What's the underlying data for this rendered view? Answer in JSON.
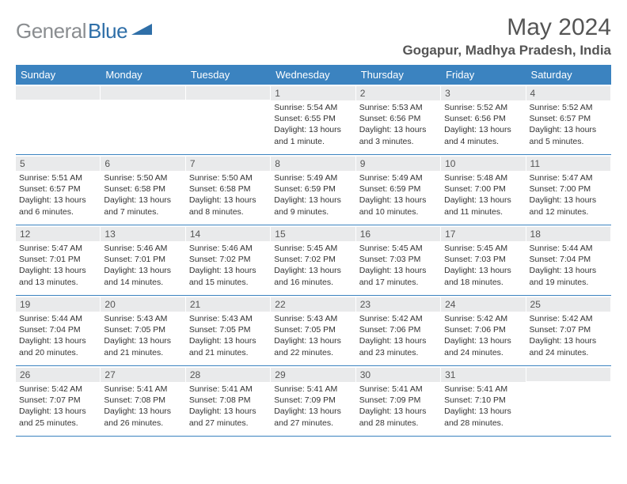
{
  "logo": {
    "text_gray": "General",
    "text_blue": "Blue"
  },
  "title": "May 2024",
  "location": "Gogapur, Madhya Pradesh, India",
  "colors": {
    "header_bg": "#3b83c0",
    "header_text": "#ffffff",
    "band_bg": "#e9eaeb",
    "logo_gray": "#8a8d90",
    "logo_blue": "#2f6fa8",
    "border": "#3b83c0",
    "text": "#333333"
  },
  "weekdays": [
    "Sunday",
    "Monday",
    "Tuesday",
    "Wednesday",
    "Thursday",
    "Friday",
    "Saturday"
  ],
  "weeks": [
    [
      {
        "n": "",
        "sr": "",
        "ss": "",
        "dl": ""
      },
      {
        "n": "",
        "sr": "",
        "ss": "",
        "dl": ""
      },
      {
        "n": "",
        "sr": "",
        "ss": "",
        "dl": ""
      },
      {
        "n": "1",
        "sr": "Sunrise: 5:54 AM",
        "ss": "Sunset: 6:55 PM",
        "dl": "Daylight: 13 hours and 1 minute."
      },
      {
        "n": "2",
        "sr": "Sunrise: 5:53 AM",
        "ss": "Sunset: 6:56 PM",
        "dl": "Daylight: 13 hours and 3 minutes."
      },
      {
        "n": "3",
        "sr": "Sunrise: 5:52 AM",
        "ss": "Sunset: 6:56 PM",
        "dl": "Daylight: 13 hours and 4 minutes."
      },
      {
        "n": "4",
        "sr": "Sunrise: 5:52 AM",
        "ss": "Sunset: 6:57 PM",
        "dl": "Daylight: 13 hours and 5 minutes."
      }
    ],
    [
      {
        "n": "5",
        "sr": "Sunrise: 5:51 AM",
        "ss": "Sunset: 6:57 PM",
        "dl": "Daylight: 13 hours and 6 minutes."
      },
      {
        "n": "6",
        "sr": "Sunrise: 5:50 AM",
        "ss": "Sunset: 6:58 PM",
        "dl": "Daylight: 13 hours and 7 minutes."
      },
      {
        "n": "7",
        "sr": "Sunrise: 5:50 AM",
        "ss": "Sunset: 6:58 PM",
        "dl": "Daylight: 13 hours and 8 minutes."
      },
      {
        "n": "8",
        "sr": "Sunrise: 5:49 AM",
        "ss": "Sunset: 6:59 PM",
        "dl": "Daylight: 13 hours and 9 minutes."
      },
      {
        "n": "9",
        "sr": "Sunrise: 5:49 AM",
        "ss": "Sunset: 6:59 PM",
        "dl": "Daylight: 13 hours and 10 minutes."
      },
      {
        "n": "10",
        "sr": "Sunrise: 5:48 AM",
        "ss": "Sunset: 7:00 PM",
        "dl": "Daylight: 13 hours and 11 minutes."
      },
      {
        "n": "11",
        "sr": "Sunrise: 5:47 AM",
        "ss": "Sunset: 7:00 PM",
        "dl": "Daylight: 13 hours and 12 minutes."
      }
    ],
    [
      {
        "n": "12",
        "sr": "Sunrise: 5:47 AM",
        "ss": "Sunset: 7:01 PM",
        "dl": "Daylight: 13 hours and 13 minutes."
      },
      {
        "n": "13",
        "sr": "Sunrise: 5:46 AM",
        "ss": "Sunset: 7:01 PM",
        "dl": "Daylight: 13 hours and 14 minutes."
      },
      {
        "n": "14",
        "sr": "Sunrise: 5:46 AM",
        "ss": "Sunset: 7:02 PM",
        "dl": "Daylight: 13 hours and 15 minutes."
      },
      {
        "n": "15",
        "sr": "Sunrise: 5:45 AM",
        "ss": "Sunset: 7:02 PM",
        "dl": "Daylight: 13 hours and 16 minutes."
      },
      {
        "n": "16",
        "sr": "Sunrise: 5:45 AM",
        "ss": "Sunset: 7:03 PM",
        "dl": "Daylight: 13 hours and 17 minutes."
      },
      {
        "n": "17",
        "sr": "Sunrise: 5:45 AM",
        "ss": "Sunset: 7:03 PM",
        "dl": "Daylight: 13 hours and 18 minutes."
      },
      {
        "n": "18",
        "sr": "Sunrise: 5:44 AM",
        "ss": "Sunset: 7:04 PM",
        "dl": "Daylight: 13 hours and 19 minutes."
      }
    ],
    [
      {
        "n": "19",
        "sr": "Sunrise: 5:44 AM",
        "ss": "Sunset: 7:04 PM",
        "dl": "Daylight: 13 hours and 20 minutes."
      },
      {
        "n": "20",
        "sr": "Sunrise: 5:43 AM",
        "ss": "Sunset: 7:05 PM",
        "dl": "Daylight: 13 hours and 21 minutes."
      },
      {
        "n": "21",
        "sr": "Sunrise: 5:43 AM",
        "ss": "Sunset: 7:05 PM",
        "dl": "Daylight: 13 hours and 21 minutes."
      },
      {
        "n": "22",
        "sr": "Sunrise: 5:43 AM",
        "ss": "Sunset: 7:05 PM",
        "dl": "Daylight: 13 hours and 22 minutes."
      },
      {
        "n": "23",
        "sr": "Sunrise: 5:42 AM",
        "ss": "Sunset: 7:06 PM",
        "dl": "Daylight: 13 hours and 23 minutes."
      },
      {
        "n": "24",
        "sr": "Sunrise: 5:42 AM",
        "ss": "Sunset: 7:06 PM",
        "dl": "Daylight: 13 hours and 24 minutes."
      },
      {
        "n": "25",
        "sr": "Sunrise: 5:42 AM",
        "ss": "Sunset: 7:07 PM",
        "dl": "Daylight: 13 hours and 24 minutes."
      }
    ],
    [
      {
        "n": "26",
        "sr": "Sunrise: 5:42 AM",
        "ss": "Sunset: 7:07 PM",
        "dl": "Daylight: 13 hours and 25 minutes."
      },
      {
        "n": "27",
        "sr": "Sunrise: 5:41 AM",
        "ss": "Sunset: 7:08 PM",
        "dl": "Daylight: 13 hours and 26 minutes."
      },
      {
        "n": "28",
        "sr": "Sunrise: 5:41 AM",
        "ss": "Sunset: 7:08 PM",
        "dl": "Daylight: 13 hours and 27 minutes."
      },
      {
        "n": "29",
        "sr": "Sunrise: 5:41 AM",
        "ss": "Sunset: 7:09 PM",
        "dl": "Daylight: 13 hours and 27 minutes."
      },
      {
        "n": "30",
        "sr": "Sunrise: 5:41 AM",
        "ss": "Sunset: 7:09 PM",
        "dl": "Daylight: 13 hours and 28 minutes."
      },
      {
        "n": "31",
        "sr": "Sunrise: 5:41 AM",
        "ss": "Sunset: 7:10 PM",
        "dl": "Daylight: 13 hours and 28 minutes."
      },
      {
        "n": "",
        "sr": "",
        "ss": "",
        "dl": ""
      }
    ]
  ]
}
